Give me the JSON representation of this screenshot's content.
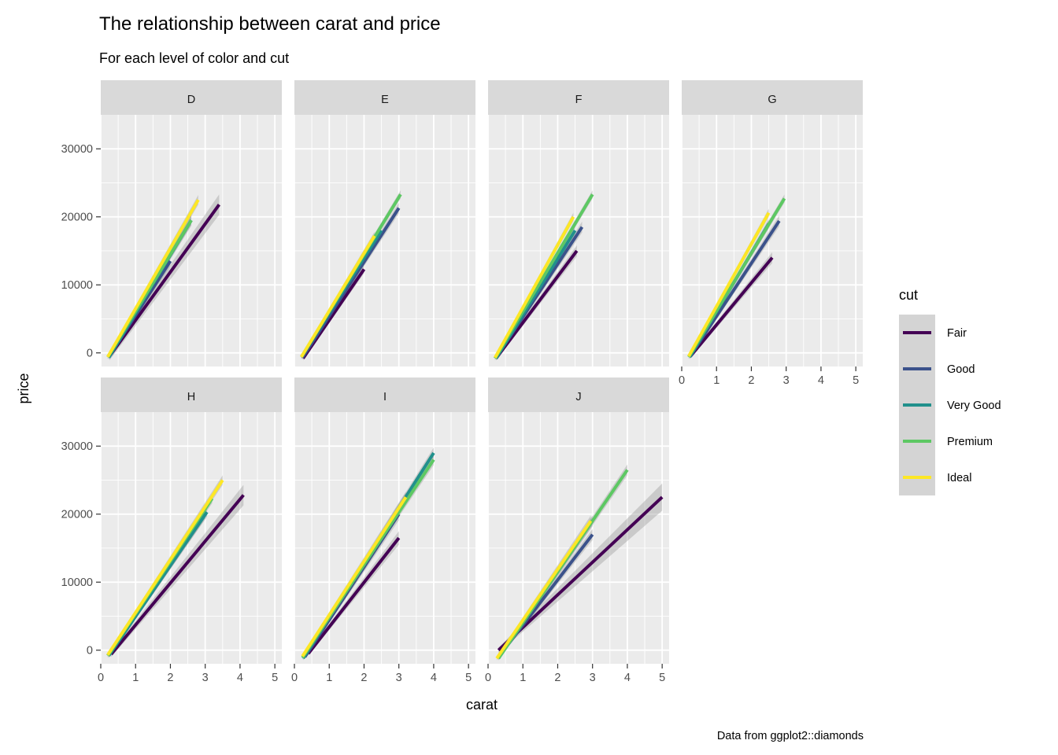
{
  "chart_data": {
    "type": "line",
    "title": "The relationship between carat and price",
    "subtitle": "For each level of color and cut",
    "xlabel": "carat",
    "ylabel": "price",
    "caption": "Data from ggplot2::diamonds",
    "xlim": [
      0,
      5.2
    ],
    "ylim": [
      -2000,
      35000
    ],
    "x_ticks": [
      0,
      1,
      2,
      3,
      4,
      5
    ],
    "y_ticks": [
      0,
      10000,
      20000,
      30000
    ],
    "grid": true,
    "legend": {
      "title": "cut",
      "position": "right",
      "entries": [
        {
          "name": "Fair",
          "color": "#440154"
        },
        {
          "name": "Good",
          "color": "#3B528B"
        },
        {
          "name": "Very Good",
          "color": "#21908C"
        },
        {
          "name": "Premium",
          "color": "#5DC863"
        },
        {
          "name": "Ideal",
          "color": "#FDE725"
        }
      ]
    },
    "facets": [
      {
        "label": "D",
        "series": [
          {
            "name": "Fair",
            "x": [
              0.25,
              3.4
            ],
            "y": [
              -500,
              21800
            ],
            "ribbon": [
              600,
              1500
            ]
          },
          {
            "name": "Good",
            "x": [
              0.23,
              2.0
            ],
            "y": [
              -600,
              13500
            ],
            "ribbon": [
              300,
              700
            ]
          },
          {
            "name": "Very Good",
            "x": [
              0.23,
              2.6
            ],
            "y": [
              -700,
              19500
            ],
            "ribbon": [
              300,
              800
            ]
          },
          {
            "name": "Premium",
            "x": [
              0.2,
              2.6
            ],
            "y": [
              -600,
              19500
            ],
            "ribbon": [
              300,
              700
            ]
          },
          {
            "name": "Ideal",
            "x": [
              0.2,
              2.8
            ],
            "y": [
              -600,
              22500
            ],
            "ribbon": [
              300,
              700
            ]
          }
        ]
      },
      {
        "label": "E",
        "series": [
          {
            "name": "Fair",
            "x": [
              0.25,
              2.0
            ],
            "y": [
              -800,
              12300
            ],
            "ribbon": [
              300,
              600
            ]
          },
          {
            "name": "Good",
            "x": [
              0.23,
              3.0
            ],
            "y": [
              -700,
              21300
            ],
            "ribbon": [
              300,
              800
            ]
          },
          {
            "name": "Very Good",
            "x": [
              0.2,
              2.5
            ],
            "y": [
              -600,
              18000
            ],
            "ribbon": [
              300,
              600
            ]
          },
          {
            "name": "Premium",
            "x": [
              0.2,
              3.05
            ],
            "y": [
              -600,
              23300
            ],
            "ribbon": [
              300,
              600
            ]
          },
          {
            "name": "Ideal",
            "x": [
              0.2,
              2.3
            ],
            "y": [
              -600,
              17200
            ],
            "ribbon": [
              300,
              600
            ]
          }
        ]
      },
      {
        "label": "F",
        "series": [
          {
            "name": "Fair",
            "x": [
              0.23,
              2.55
            ],
            "y": [
              -800,
              15000
            ],
            "ribbon": [
              300,
              800
            ]
          },
          {
            "name": "Good",
            "x": [
              0.23,
              2.7
            ],
            "y": [
              -700,
              18500
            ],
            "ribbon": [
              300,
              800
            ]
          },
          {
            "name": "Very Good",
            "x": [
              0.23,
              2.5
            ],
            "y": [
              -800,
              18000
            ],
            "ribbon": [
              300,
              700
            ]
          },
          {
            "name": "Premium",
            "x": [
              0.2,
              3.0
            ],
            "y": [
              -800,
              23300
            ],
            "ribbon": [
              300,
              600
            ]
          },
          {
            "name": "Ideal",
            "x": [
              0.2,
              2.45
            ],
            "y": [
              -700,
              20000
            ],
            "ribbon": [
              300,
              600
            ]
          }
        ]
      },
      {
        "label": "G",
        "series": [
          {
            "name": "Fair",
            "x": [
              0.25,
              2.6
            ],
            "y": [
              -500,
              14000
            ],
            "ribbon": [
              300,
              800
            ]
          },
          {
            "name": "Good",
            "x": [
              0.23,
              2.8
            ],
            "y": [
              -600,
              19400
            ],
            "ribbon": [
              300,
              800
            ]
          },
          {
            "name": "Very Good",
            "x": [
              0.23,
              2.5
            ],
            "y": [
              -600,
              19000
            ],
            "ribbon": [
              300,
              700
            ]
          },
          {
            "name": "Premium",
            "x": [
              0.2,
              2.95
            ],
            "y": [
              -600,
              22700
            ],
            "ribbon": [
              300,
              600
            ]
          },
          {
            "name": "Ideal",
            "x": [
              0.2,
              2.5
            ],
            "y": [
              -500,
              20600
            ],
            "ribbon": [
              300,
              600
            ]
          }
        ]
      },
      {
        "label": "H",
        "series": [
          {
            "name": "Fair",
            "x": [
              0.3,
              4.1
            ],
            "y": [
              -600,
              22800
            ],
            "ribbon": [
              400,
              1500
            ]
          },
          {
            "name": "Good",
            "x": [
              0.23,
              3.0
            ],
            "y": [
              -800,
              20000
            ],
            "ribbon": [
              300,
              700
            ]
          },
          {
            "name": "Very Good",
            "x": [
              0.23,
              3.05
            ],
            "y": [
              -800,
              20300
            ],
            "ribbon": [
              300,
              700
            ]
          },
          {
            "name": "Premium",
            "x": [
              0.2,
              3.2
            ],
            "y": [
              -800,
              22300
            ],
            "ribbon": [
              300,
              700
            ]
          },
          {
            "name": "Ideal",
            "x": [
              0.2,
              3.5
            ],
            "y": [
              -700,
              25000
            ],
            "ribbon": [
              300,
              700
            ]
          }
        ]
      },
      {
        "label": "I",
        "series": [
          {
            "name": "Fair",
            "x": [
              0.4,
              3.0
            ],
            "y": [
              -500,
              16500
            ],
            "ribbon": [
              300,
              1000
            ]
          },
          {
            "name": "Good",
            "x": [
              0.3,
              3.0
            ],
            "y": [
              -1000,
              20000
            ],
            "ribbon": [
              300,
              900
            ]
          },
          {
            "name": "Very Good",
            "x": [
              0.25,
              4.0
            ],
            "y": [
              -1200,
              29000
            ],
            "ribbon": [
              300,
              800
            ]
          },
          {
            "name": "Premium",
            "x": [
              0.23,
              4.0
            ],
            "y": [
              -1100,
              28000
            ],
            "ribbon": [
              300,
              800
            ]
          },
          {
            "name": "Ideal",
            "x": [
              0.23,
              3.2
            ],
            "y": [
              -900,
              22500
            ],
            "ribbon": [
              300,
              800
            ]
          }
        ]
      },
      {
        "label": "J",
        "series": [
          {
            "name": "Fair",
            "x": [
              0.3,
              5.0
            ],
            "y": [
              0,
              22500
            ],
            "ribbon": [
              400,
              2000
            ]
          },
          {
            "name": "Good",
            "x": [
              0.3,
              3.0
            ],
            "y": [
              -1000,
              17000
            ],
            "ribbon": [
              300,
              800
            ]
          },
          {
            "name": "Very Good",
            "x": [
              0.3,
              3.0
            ],
            "y": [
              -1200,
              19000
            ],
            "ribbon": [
              300,
              800
            ]
          },
          {
            "name": "Premium",
            "x": [
              0.3,
              4.0
            ],
            "y": [
              -1200,
              26500
            ],
            "ribbon": [
              300,
              800
            ]
          },
          {
            "name": "Ideal",
            "x": [
              0.25,
              2.95
            ],
            "y": [
              -1200,
              19000
            ],
            "ribbon": [
              300,
              800
            ]
          }
        ]
      }
    ]
  }
}
